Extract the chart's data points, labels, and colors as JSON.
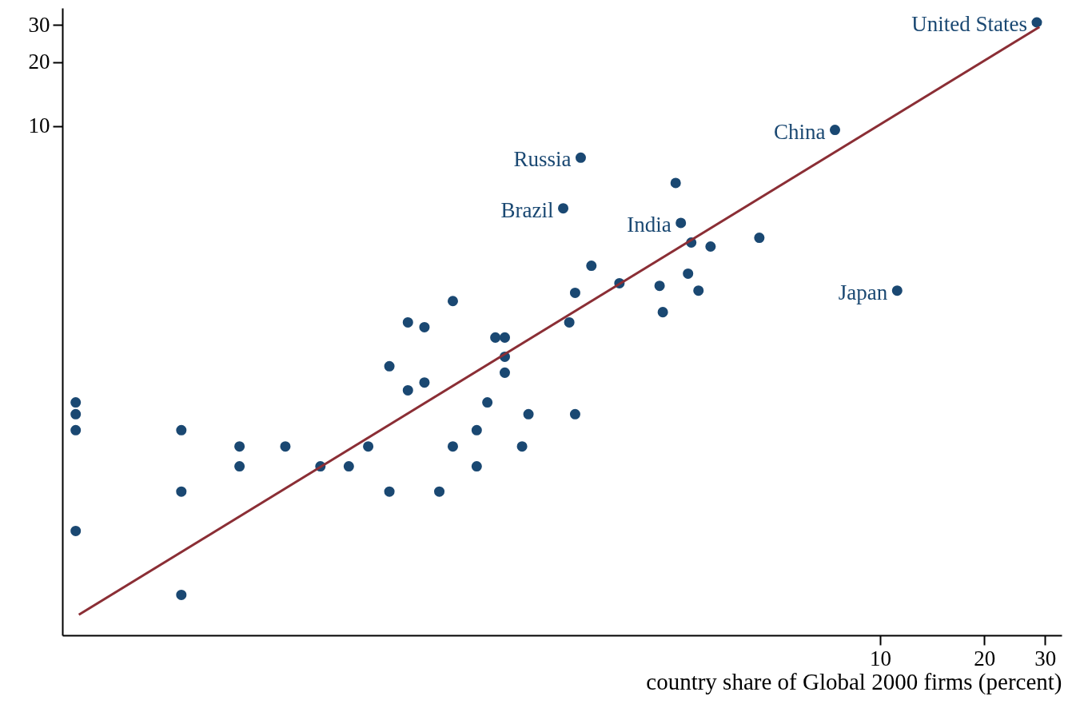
{
  "chart_data": {
    "type": "scatter",
    "xlabel": "country share of Global 2000 firms (percent)",
    "log": "xy",
    "xlim": [
      0.043,
      33.5
    ],
    "ylim": [
      0.04,
      36
    ],
    "xticks": [
      10,
      20,
      30
    ],
    "yticks": [
      10,
      20,
      30
    ],
    "series": [
      {
        "color": "#1a4872",
        "x": [
          0.047,
          0.047,
          0.047,
          0.047,
          0.095,
          0.095,
          0.095,
          0.14,
          0.14,
          0.19,
          0.24,
          0.29,
          0.33,
          0.38,
          0.38,
          0.43,
          0.43,
          0.48,
          0.48,
          0.53,
          0.58,
          0.58,
          0.68,
          0.68,
          0.73,
          0.77,
          0.82,
          0.82,
          0.82,
          0.92,
          0.96,
          1.21,
          1.26,
          1.31,
          1.31,
          1.36,
          1.46,
          1.76,
          2.3,
          2.35,
          2.56,
          2.65,
          2.78,
          2.84,
          2.98,
          3.23,
          4.47,
          7.4,
          11.2,
          28.4
        ],
        "values": [
          0.5,
          0.44,
          0.37,
          0.124,
          0.37,
          0.19,
          0.062,
          0.31,
          0.25,
          0.31,
          0.25,
          0.25,
          0.31,
          0.74,
          0.19,
          1.19,
          0.57,
          1.13,
          0.62,
          0.19,
          1.5,
          0.31,
          0.37,
          0.25,
          0.5,
          1.01,
          1.01,
          0.82,
          0.69,
          0.31,
          0.44,
          4.1,
          1.19,
          1.64,
          0.44,
          7.1,
          2.2,
          1.82,
          1.77,
          1.33,
          5.4,
          3.5,
          2.02,
          2.83,
          1.68,
          2.71,
          2.98,
          9.6,
          1.68,
          30.8
        ]
      },
      {
        "type": "line",
        "color": "#8b2e35",
        "x": [
          0.048,
          28.9
        ],
        "values": [
          0.05,
          29.3
        ]
      }
    ],
    "annotations": [
      {
        "text": "United States",
        "x": 28.4,
        "y": 30.8
      },
      {
        "text": "China",
        "x": 7.4,
        "y": 9.6
      },
      {
        "text": "Russia",
        "x": 1.36,
        "y": 7.1
      },
      {
        "text": "Brazil",
        "x": 1.21,
        "y": 4.1
      },
      {
        "text": "India",
        "x": 2.65,
        "y": 3.5
      },
      {
        "text": "Japan",
        "x": 11.2,
        "y": 1.68
      }
    ]
  }
}
